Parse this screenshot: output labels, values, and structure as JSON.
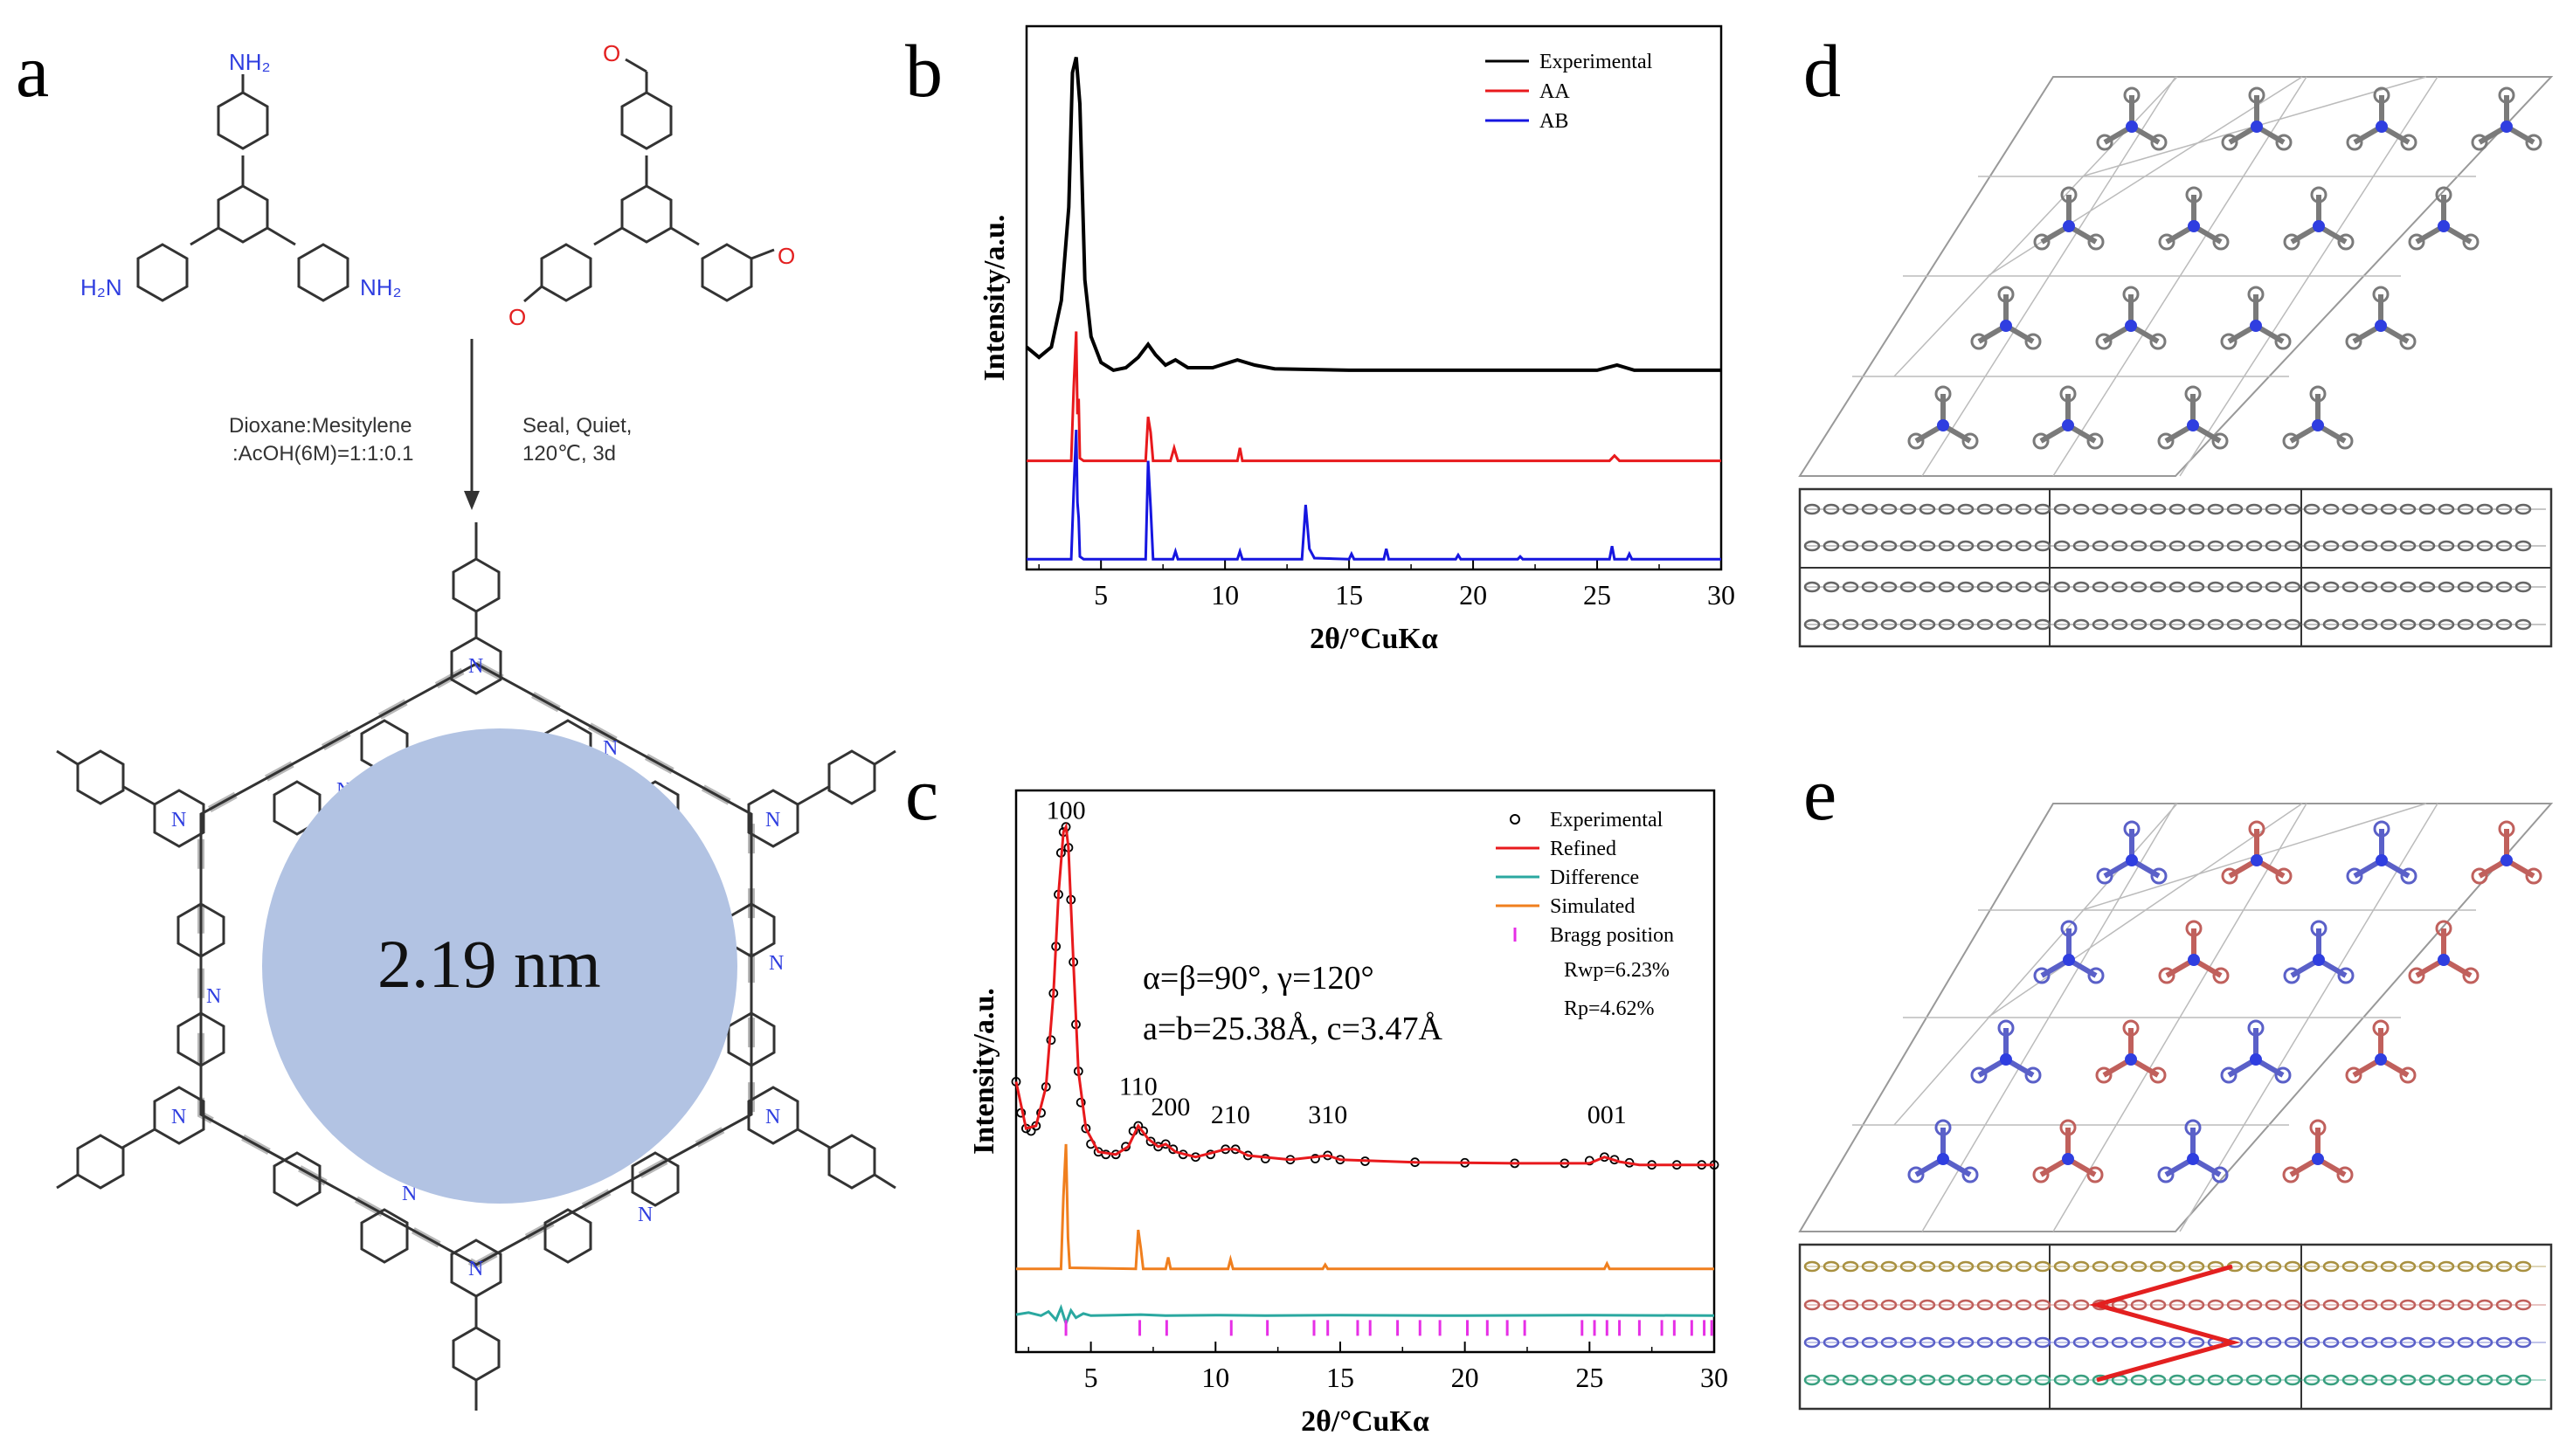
{
  "panels": {
    "a": {
      "letter": "a",
      "top_left": {
        "amine": "NH₂",
        "N": "N"
      },
      "labels": {
        "amine_top": "NH₂",
        "amine_left": "H₂N",
        "amine_right": "NH₂",
        "aldehyde_o": "O",
        "cond_left_1": "Dioxane:Mesitylene",
        "cond_left_2": ":AcOH(6M)=1:1:0.1",
        "cond_right_1": "Seal, Quiet,",
        "cond_right_2": "120℃, 3d",
        "imine_n": "N",
        "ring_n": "N",
        "pore_size": "2.19 nm"
      }
    },
    "b": {
      "letter": "b"
    },
    "c": {
      "letter": "c",
      "lattice_line1": "α=β=90°, γ=120°",
      "lattice_line2": "a=b=25.38Å, c=3.47Å",
      "rwp": "Rwp=6.23%",
      "rp": "Rp=4.62%",
      "peak_labels": [
        "100",
        "110",
        "200",
        "210",
        "310",
        "001"
      ]
    },
    "d": {
      "letter": "d"
    },
    "e": {
      "letter": "e"
    }
  },
  "colors": {
    "experimental": "#000000",
    "aa": "#e8191c",
    "ab": "#1616e0",
    "refined": "#e8191c",
    "difference": "#2aa8a0",
    "simulated": "#f07f1e",
    "bragg": "#e62fe6",
    "pore": "#b2c3e3",
    "nitrogen": "#2f3ee0",
    "stack_red": "#e32020"
  },
  "chart_data": [
    {
      "panel": "b",
      "type": "line",
      "title": "",
      "xlabel": "2θ/°CuKα",
      "ylabel": "Intensity/a.u.",
      "xlim": [
        2,
        30
      ],
      "xticks": [
        5,
        10,
        15,
        20,
        25,
        30
      ],
      "legend_position": "top-right",
      "series": [
        {
          "name": "Experimental",
          "x": [
            2,
            2.5,
            3,
            3.4,
            3.7,
            3.85,
            4.0,
            4.15,
            4.35,
            4.6,
            5.0,
            5.5,
            6.0,
            6.5,
            6.9,
            7.2,
            7.6,
            8.0,
            8.5,
            9.5,
            10.5,
            11.2,
            12,
            15,
            20,
            25,
            25.8,
            26.5,
            30
          ],
          "y": [
            4.3,
            4.1,
            4.3,
            5.2,
            7.0,
            9.6,
            9.9,
            9.0,
            5.6,
            4.5,
            4.0,
            3.85,
            3.9,
            4.1,
            4.35,
            4.15,
            3.95,
            4.05,
            3.9,
            3.9,
            4.05,
            3.95,
            3.88,
            3.85,
            3.85,
            3.85,
            3.95,
            3.85,
            3.85
          ]
        },
        {
          "name": "AA",
          "x": [
            2,
            3.8,
            3.9,
            4.0,
            4.05,
            4.1,
            4.15,
            4.3,
            6.8,
            6.9,
            7.0,
            7.1,
            7.8,
            7.95,
            8.1,
            10.5,
            10.6,
            10.7,
            25.5,
            25.7,
            25.9,
            30
          ],
          "y": [
            2.1,
            2.1,
            3.5,
            4.6,
            3.0,
            3.3,
            2.15,
            2.1,
            2.1,
            2.95,
            2.65,
            2.1,
            2.1,
            2.35,
            2.1,
            2.1,
            2.35,
            2.1,
            2.1,
            2.2,
            2.1,
            2.1
          ]
        },
        {
          "name": "AB",
          "x": [
            2,
            3.8,
            3.9,
            4.0,
            4.05,
            4.1,
            4.15,
            4.3,
            6.8,
            6.9,
            7.0,
            7.1,
            7.9,
            8.0,
            8.1,
            10.5,
            10.6,
            10.7,
            13.1,
            13.25,
            13.4,
            13.6,
            15.0,
            15.1,
            15.2,
            16.4,
            16.5,
            16.6,
            19.3,
            19.4,
            19.5,
            21.8,
            21.9,
            22.0,
            25.5,
            25.6,
            25.7,
            26.2,
            26.3,
            26.4,
            30
          ],
          "y": [
            0.2,
            0.2,
            1.5,
            2.7,
            1.3,
            1.0,
            0.25,
            0.2,
            0.2,
            2.1,
            1.2,
            0.2,
            0.2,
            0.35,
            0.2,
            0.2,
            0.35,
            0.2,
            0.2,
            1.25,
            0.4,
            0.22,
            0.2,
            0.3,
            0.2,
            0.2,
            0.4,
            0.2,
            0.2,
            0.28,
            0.2,
            0.2,
            0.25,
            0.2,
            0.2,
            0.45,
            0.2,
            0.2,
            0.3,
            0.2,
            0.2
          ]
        }
      ]
    },
    {
      "panel": "c",
      "type": "line",
      "title": "",
      "xlabel": "2θ/°CuKα",
      "ylabel": "Intensity/a.u.",
      "xlim": [
        2,
        30
      ],
      "xticks": [
        5,
        10,
        15,
        20,
        25,
        30
      ],
      "legend_position": "top-right",
      "series": [
        {
          "name": "Experimental",
          "style": "open-circle",
          "x": [
            2.0,
            2.2,
            2.4,
            2.6,
            2.8,
            3.0,
            3.2,
            3.4,
            3.5,
            3.6,
            3.7,
            3.8,
            3.9,
            4.0,
            4.1,
            4.2,
            4.3,
            4.4,
            4.5,
            4.6,
            4.8,
            5.0,
            5.3,
            5.6,
            6.0,
            6.4,
            6.7,
            6.9,
            7.1,
            7.4,
            7.7,
            8.0,
            8.3,
            8.7,
            9.2,
            9.8,
            10.4,
            10.8,
            11.3,
            12,
            13,
            14,
            14.5,
            15,
            16,
            18,
            20,
            22,
            24,
            25,
            25.6,
            26,
            26.6,
            27.5,
            28.5,
            29.5,
            30
          ],
          "y": [
            5.2,
            4.6,
            4.3,
            4.25,
            4.35,
            4.6,
            5.1,
            6.0,
            6.9,
            7.8,
            8.8,
            9.6,
            10.0,
            10.1,
            9.7,
            8.7,
            7.5,
            6.3,
            5.4,
            4.8,
            4.3,
            4.0,
            3.85,
            3.8,
            3.8,
            3.95,
            4.25,
            4.35,
            4.25,
            4.05,
            3.95,
            4.0,
            3.9,
            3.8,
            3.75,
            3.8,
            3.9,
            3.9,
            3.78,
            3.72,
            3.7,
            3.72,
            3.78,
            3.7,
            3.67,
            3.65,
            3.64,
            3.63,
            3.63,
            3.68,
            3.75,
            3.7,
            3.64,
            3.6,
            3.6,
            3.6,
            3.6
          ]
        },
        {
          "name": "Refined",
          "x": [
            2.0,
            2.4,
            2.8,
            3.2,
            3.5,
            3.7,
            3.9,
            4.0,
            4.1,
            4.3,
            4.5,
            4.8,
            5.3,
            6.0,
            6.5,
            6.9,
            7.3,
            7.7,
            8.0,
            8.4,
            9.2,
            10.4,
            10.8,
            11.3,
            13,
            14.5,
            15,
            18,
            22,
            25,
            25.6,
            26.2,
            27,
            30
          ],
          "y": [
            5.2,
            4.3,
            4.35,
            5.1,
            6.9,
            8.8,
            10.0,
            10.1,
            9.7,
            7.5,
            5.4,
            4.3,
            3.85,
            3.8,
            3.95,
            4.35,
            4.1,
            3.95,
            4.0,
            3.85,
            3.75,
            3.9,
            3.9,
            3.78,
            3.7,
            3.78,
            3.7,
            3.65,
            3.63,
            3.63,
            3.75,
            3.66,
            3.6,
            3.6
          ]
        },
        {
          "name": "Difference",
          "x": [
            2,
            2.5,
            3.0,
            3.3,
            3.6,
            3.8,
            4.0,
            4.2,
            4.4,
            4.7,
            5.0,
            6,
            7,
            8,
            10,
            12,
            15,
            20,
            25,
            30
          ],
          "y": [
            0.72,
            0.76,
            0.7,
            0.78,
            0.62,
            0.85,
            0.55,
            0.8,
            0.66,
            0.74,
            0.7,
            0.71,
            0.72,
            0.7,
            0.71,
            0.7,
            0.71,
            0.7,
            0.71,
            0.7
          ]
        },
        {
          "name": "Simulated",
          "x": [
            2,
            3.8,
            3.9,
            4.0,
            4.08,
            4.15,
            6.8,
            6.9,
            7.0,
            7.1,
            8.0,
            8.1,
            8.2,
            10.5,
            10.6,
            10.7,
            14.3,
            14.4,
            14.5,
            25.6,
            25.7,
            25.8,
            30
          ],
          "y": [
            1.6,
            1.6,
            3.0,
            4.0,
            2.2,
            1.62,
            1.6,
            2.35,
            2.0,
            1.6,
            1.6,
            1.82,
            1.6,
            1.6,
            1.78,
            1.6,
            1.6,
            1.68,
            1.6,
            1.6,
            1.7,
            1.6,
            1.6
          ]
        },
        {
          "name": "Bragg position",
          "style": "tick",
          "x": [
            4.0,
            6.96,
            8.04,
            10.63,
            12.08,
            13.95,
            14.5,
            15.7,
            16.2,
            17.3,
            18.2,
            19.0,
            20.1,
            20.9,
            21.7,
            22.4,
            24.7,
            25.2,
            25.7,
            26.2,
            27.0,
            27.9,
            28.4,
            29.1,
            29.6,
            29.9
          ]
        }
      ]
    }
  ]
}
